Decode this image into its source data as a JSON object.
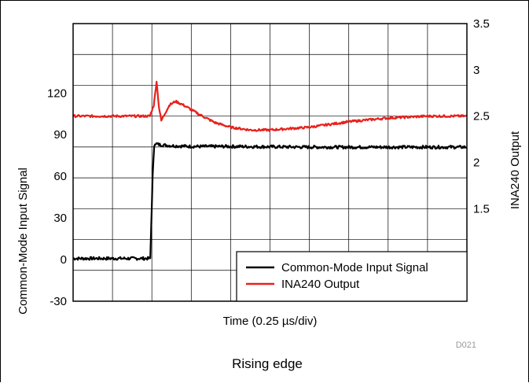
{
  "chart_data": {
    "type": "line",
    "x_label_prefix": "Time (0.25 ",
    "x_label_unit": "µs/div)",
    "left_axis": {
      "label": "Common-Mode Input Signal",
      "ticks": [
        "-30",
        "0",
        "30",
        "60",
        "90",
        "120"
      ],
      "ylim": [
        -30,
        170
      ]
    },
    "right_axis": {
      "label": "INA240 Output",
      "ticks": [
        "1.5",
        "2",
        "2.5",
        "3",
        "3.5"
      ],
      "ylim": [
        0.5,
        3.5
      ]
    },
    "x_divisions": 10,
    "xlim": [
      0,
      10
    ],
    "series": [
      {
        "name": "Common-Mode Input Signal",
        "axis": "left",
        "color": "#000000",
        "points": [
          [
            0,
            0.8
          ],
          [
            1.0,
            0.8
          ],
          [
            1.96,
            0.8
          ],
          [
            2.02,
            60
          ],
          [
            2.06,
            82
          ],
          [
            2.08,
            84
          ],
          [
            2.15,
            83
          ],
          [
            2.3,
            82.5
          ],
          [
            2.5,
            82
          ],
          [
            3.0,
            81.5
          ],
          [
            4.0,
            81.5
          ],
          [
            6.0,
            81
          ],
          [
            8.0,
            81
          ],
          [
            10.0,
            81
          ]
        ]
      },
      {
        "name": "INA240 Output",
        "axis": "right",
        "color": "#e8201b",
        "points": [
          [
            0,
            2.5
          ],
          [
            1.0,
            2.5
          ],
          [
            1.95,
            2.5
          ],
          [
            2.05,
            2.62
          ],
          [
            2.12,
            2.88
          ],
          [
            2.18,
            2.6
          ],
          [
            2.24,
            2.45
          ],
          [
            2.32,
            2.52
          ],
          [
            2.45,
            2.62
          ],
          [
            2.6,
            2.66
          ],
          [
            2.8,
            2.62
          ],
          [
            3.2,
            2.52
          ],
          [
            3.6,
            2.43
          ],
          [
            4.0,
            2.38
          ],
          [
            4.5,
            2.35
          ],
          [
            5.0,
            2.35
          ],
          [
            6.0,
            2.38
          ],
          [
            7.0,
            2.44
          ],
          [
            8.0,
            2.48
          ],
          [
            9.0,
            2.5
          ],
          [
            10.0,
            2.5
          ]
        ]
      }
    ],
    "legend": {
      "position": "bottom-right",
      "entries": [
        "Common-Mode Input Signal",
        "INA240 Output"
      ]
    },
    "figure_code": "D021",
    "caption": "Rising edge",
    "grid": true
  }
}
